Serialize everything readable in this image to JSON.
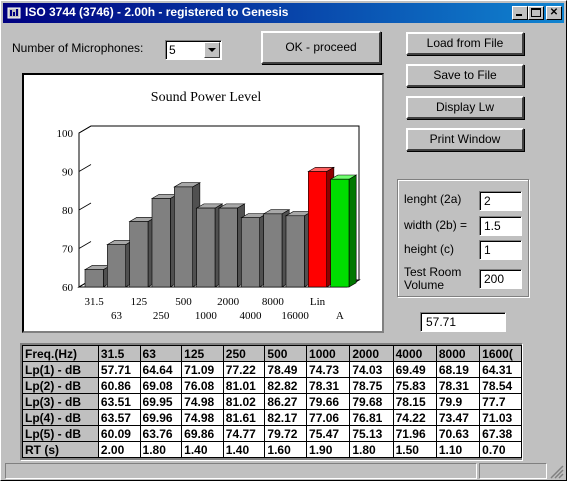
{
  "window": {
    "title": "ISO 3744 (3746) - 2.00h - registered to Genesis"
  },
  "controls": {
    "mic_label": "Number of Microphones:",
    "mic_value": "5",
    "ok_label": "OK - proceed",
    "load_label": "Load from File",
    "save_label": "Save to File",
    "display_label": "Display Lw",
    "print_label": "Print Window"
  },
  "dimensions": {
    "length_label": "lenght (2a)",
    "length_value": "2",
    "width_label": "width   (2b) =",
    "width_value": "1.5",
    "height_label": "height  (c)",
    "height_value": "1",
    "volume_label_1": "Test Room",
    "volume_label_2": "Volume",
    "volume_value": "200"
  },
  "result_value": "57.71",
  "colors": {
    "bar": "#808080",
    "lin": "#ff0000",
    "a": "#00dd00"
  },
  "chart_data": {
    "type": "bar",
    "title": "Sound Power Level",
    "categories": [
      "31.5",
      "63",
      "125",
      "250",
      "500",
      "1000",
      "2000",
      "4000",
      "8000",
      "16000",
      "Lin",
      "A"
    ],
    "values": [
      64.5,
      71,
      77,
      83,
      86,
      80.5,
      80.5,
      78,
      79,
      78.5,
      90,
      88
    ],
    "ylim": [
      60,
      100
    ],
    "yticks": [
      60,
      70,
      80,
      90,
      100
    ],
    "xlabels_top": [
      "31.5",
      "125",
      "500",
      "2000",
      "8000",
      "Lin"
    ],
    "xlabels_bottom": [
      "63",
      "250",
      "1000",
      "4000",
      "16000",
      "A"
    ]
  },
  "table": {
    "headers": [
      "Freq.(Hz)",
      "31.5",
      "63",
      "125",
      "250",
      "500",
      "1000",
      "2000",
      "4000",
      "8000",
      "1600("
    ],
    "rows": [
      {
        "label": "Lp(1) - dB",
        "values": [
          "57.71",
          "64.64",
          "71.09",
          "77.22",
          "78.49",
          "74.73",
          "74.03",
          "69.49",
          "68.19",
          "64.31"
        ]
      },
      {
        "label": "Lp(2) - dB",
        "values": [
          "60.86",
          "69.08",
          "76.08",
          "81.01",
          "82.82",
          "78.31",
          "78.75",
          "75.83",
          "78.31",
          "78.54"
        ]
      },
      {
        "label": "Lp(3) - dB",
        "values": [
          "63.51",
          "69.95",
          "74.98",
          "81.02",
          "86.27",
          "79.66",
          "79.68",
          "78.15",
          "79.9",
          "77.7"
        ]
      },
      {
        "label": "Lp(4) - dB",
        "values": [
          "63.57",
          "69.96",
          "74.98",
          "81.61",
          "82.17",
          "77.06",
          "76.81",
          "74.22",
          "73.47",
          "71.03"
        ]
      },
      {
        "label": "Lp(5) - dB",
        "values": [
          "60.09",
          "63.76",
          "69.86",
          "74.77",
          "79.72",
          "75.47",
          "75.13",
          "71.96",
          "70.63",
          "67.38"
        ]
      },
      {
        "label": "RT  (s)",
        "values": [
          "2.00",
          "1.80",
          "1.40",
          "1.40",
          "1.60",
          "1.90",
          "1.80",
          "1.50",
          "1.10",
          "0.70"
        ]
      }
    ]
  }
}
